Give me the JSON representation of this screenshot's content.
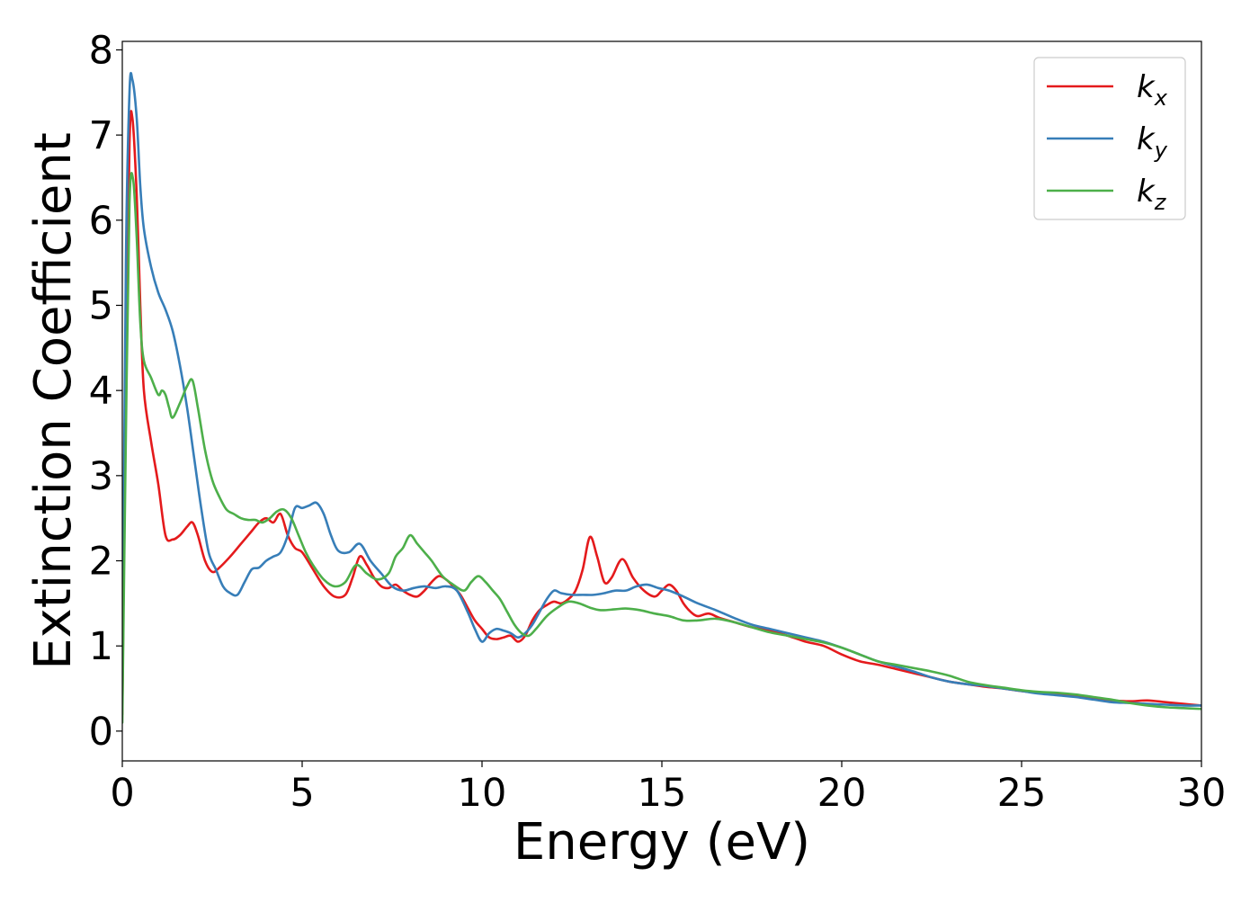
{
  "chart_data": {
    "type": "line",
    "title": "",
    "xlabel": "Energy (eV)",
    "ylabel": "Extinction Coefficient",
    "xlim": [
      0,
      30
    ],
    "ylim": [
      -0.35,
      8.1
    ],
    "xticks": [
      0,
      5,
      10,
      15,
      20,
      25,
      30
    ],
    "xtick_labels": [
      "0",
      "5",
      "10",
      "15",
      "20",
      "25",
      "30"
    ],
    "yticks": [
      0,
      1,
      2,
      3,
      4,
      5,
      6,
      7,
      8
    ],
    "ytick_labels": [
      "0",
      "1",
      "2",
      "3",
      "4",
      "5",
      "6",
      "7",
      "8"
    ],
    "grid": false,
    "legend_position": "top-right",
    "series": [
      {
        "name": "k_x",
        "legend_main": "k",
        "legend_sub": "x",
        "color": "#e41a1c",
        "x": [
          0,
          0.1,
          0.2,
          0.28,
          0.4,
          0.5,
          0.6,
          0.8,
          1.0,
          1.2,
          1.4,
          1.6,
          1.8,
          1.95,
          2.1,
          2.3,
          2.5,
          2.7,
          3.0,
          3.3,
          3.6,
          3.8,
          4.0,
          4.2,
          4.4,
          4.6,
          4.8,
          5.0,
          5.3,
          5.6,
          5.9,
          6.2,
          6.4,
          6.6,
          6.8,
          7.0,
          7.2,
          7.4,
          7.6,
          7.8,
          8.0,
          8.2,
          8.4,
          8.6,
          8.8,
          9.0,
          9.2,
          9.4,
          9.6,
          9.8,
          10.0,
          10.2,
          10.4,
          10.6,
          10.8,
          11.0,
          11.2,
          11.4,
          11.6,
          11.8,
          12.0,
          12.2,
          12.4,
          12.6,
          12.8,
          13.0,
          13.2,
          13.4,
          13.6,
          13.9,
          14.2,
          14.5,
          14.8,
          15.0,
          15.2,
          15.4,
          15.6,
          15.8,
          16.0,
          16.3,
          16.6,
          17.0,
          17.5,
          18.0,
          18.5,
          19.0,
          19.5,
          20.0,
          20.5,
          21.0,
          21.5,
          22.0,
          22.5,
          23.0,
          23.5,
          24.0,
          24.5,
          25.0,
          25.5,
          26.0,
          26.5,
          27.0,
          27.5,
          28.0,
          28.5,
          29.0,
          29.5,
          30.0
        ],
        "y": [
          0.2,
          4.2,
          6.9,
          7.2,
          6.3,
          5.0,
          4.0,
          3.4,
          2.9,
          2.3,
          2.25,
          2.3,
          2.4,
          2.45,
          2.3,
          2.0,
          1.87,
          1.92,
          2.05,
          2.2,
          2.35,
          2.45,
          2.5,
          2.45,
          2.55,
          2.3,
          2.15,
          2.1,
          1.9,
          1.7,
          1.58,
          1.6,
          1.8,
          2.05,
          1.95,
          1.8,
          1.7,
          1.68,
          1.72,
          1.65,
          1.6,
          1.58,
          1.65,
          1.75,
          1.82,
          1.78,
          1.7,
          1.6,
          1.45,
          1.3,
          1.2,
          1.1,
          1.08,
          1.1,
          1.12,
          1.05,
          1.12,
          1.3,
          1.42,
          1.48,
          1.52,
          1.5,
          1.55,
          1.65,
          1.9,
          2.28,
          2.05,
          1.75,
          1.8,
          2.02,
          1.8,
          1.65,
          1.58,
          1.65,
          1.72,
          1.65,
          1.5,
          1.4,
          1.35,
          1.38,
          1.33,
          1.28,
          1.22,
          1.18,
          1.12,
          1.05,
          1.0,
          0.9,
          0.82,
          0.78,
          0.73,
          0.68,
          0.63,
          0.58,
          0.55,
          0.52,
          0.5,
          0.47,
          0.45,
          0.43,
          0.41,
          0.38,
          0.36,
          0.35,
          0.36,
          0.34,
          0.32,
          0.3
        ]
      },
      {
        "name": "k_y",
        "legend_main": "k",
        "legend_sub": "y",
        "color": "#377eb8",
        "x": [
          0,
          0.1,
          0.2,
          0.28,
          0.4,
          0.5,
          0.6,
          0.8,
          1.0,
          1.2,
          1.4,
          1.6,
          1.8,
          2.0,
          2.2,
          2.4,
          2.6,
          2.8,
          3.0,
          3.2,
          3.4,
          3.6,
          3.8,
          4.0,
          4.2,
          4.4,
          4.6,
          4.8,
          5.0,
          5.2,
          5.4,
          5.6,
          5.8,
          6.0,
          6.3,
          6.6,
          6.9,
          7.2,
          7.5,
          7.8,
          8.1,
          8.4,
          8.7,
          9.0,
          9.3,
          9.6,
          9.8,
          10.0,
          10.2,
          10.4,
          10.6,
          10.8,
          11.0,
          11.2,
          11.4,
          11.6,
          11.8,
          12.0,
          12.2,
          12.5,
          12.8,
          13.1,
          13.4,
          13.7,
          14.0,
          14.3,
          14.6,
          14.9,
          15.2,
          15.6,
          16.0,
          16.5,
          17.0,
          17.5,
          18.0,
          18.5,
          19.0,
          19.5,
          20.0,
          20.5,
          21.0,
          21.5,
          22.0,
          22.5,
          23.0,
          23.5,
          24.0,
          24.5,
          25.0,
          25.5,
          26.0,
          26.5,
          27.0,
          27.5,
          28.0,
          28.5,
          29.0,
          29.5,
          30.0
        ],
        "y": [
          0.3,
          5.5,
          7.5,
          7.65,
          7.2,
          6.4,
          5.9,
          5.45,
          5.15,
          4.95,
          4.7,
          4.3,
          3.8,
          3.2,
          2.6,
          2.1,
          1.9,
          1.7,
          1.62,
          1.6,
          1.75,
          1.9,
          1.92,
          2.0,
          2.05,
          2.1,
          2.3,
          2.62,
          2.62,
          2.65,
          2.68,
          2.55,
          2.3,
          2.12,
          2.1,
          2.2,
          2.0,
          1.85,
          1.7,
          1.65,
          1.68,
          1.7,
          1.68,
          1.7,
          1.65,
          1.4,
          1.2,
          1.05,
          1.15,
          1.2,
          1.18,
          1.15,
          1.1,
          1.15,
          1.25,
          1.4,
          1.55,
          1.65,
          1.62,
          1.6,
          1.6,
          1.6,
          1.62,
          1.65,
          1.65,
          1.7,
          1.72,
          1.68,
          1.65,
          1.58,
          1.5,
          1.42,
          1.33,
          1.25,
          1.2,
          1.15,
          1.1,
          1.05,
          0.98,
          0.9,
          0.82,
          0.76,
          0.7,
          0.63,
          0.58,
          0.55,
          0.53,
          0.5,
          0.47,
          0.44,
          0.42,
          0.4,
          0.37,
          0.34,
          0.33,
          0.32,
          0.31,
          0.3,
          0.3
        ]
      },
      {
        "name": "k_z",
        "legend_main": "k",
        "legend_sub": "z",
        "color": "#4daf4a",
        "x": [
          0,
          0.1,
          0.2,
          0.3,
          0.4,
          0.5,
          0.6,
          0.8,
          1.0,
          1.1,
          1.2,
          1.3,
          1.4,
          1.6,
          1.8,
          1.95,
          2.1,
          2.3,
          2.5,
          2.7,
          2.9,
          3.1,
          3.3,
          3.5,
          3.7,
          3.9,
          4.1,
          4.3,
          4.5,
          4.7,
          4.9,
          5.1,
          5.3,
          5.6,
          5.9,
          6.2,
          6.5,
          6.8,
          7.1,
          7.4,
          7.6,
          7.8,
          8.0,
          8.2,
          8.4,
          8.6,
          8.9,
          9.2,
          9.5,
          9.7,
          9.9,
          10.1,
          10.3,
          10.5,
          10.7,
          10.9,
          11.1,
          11.3,
          11.5,
          11.8,
          12.1,
          12.4,
          12.7,
          13.0,
          13.3,
          13.7,
          14.0,
          14.4,
          14.8,
          15.2,
          15.6,
          16.0,
          16.5,
          17.0,
          17.5,
          18.0,
          18.5,
          19.0,
          19.5,
          20.0,
          20.5,
          21.0,
          21.5,
          22.0,
          22.5,
          23.0,
          23.5,
          24.0,
          24.5,
          25.0,
          25.5,
          26.0,
          26.5,
          27.0,
          27.5,
          28.0,
          28.5,
          29.0,
          29.5,
          30.0
        ],
        "y": [
          0.1,
          3.5,
          6.2,
          6.48,
          5.8,
          4.8,
          4.35,
          4.15,
          3.95,
          4.0,
          3.95,
          3.8,
          3.68,
          3.85,
          4.05,
          4.12,
          3.8,
          3.3,
          2.95,
          2.75,
          2.6,
          2.55,
          2.5,
          2.48,
          2.48,
          2.45,
          2.5,
          2.58,
          2.6,
          2.5,
          2.3,
          2.1,
          1.95,
          1.78,
          1.7,
          1.75,
          1.95,
          1.85,
          1.78,
          1.85,
          2.05,
          2.15,
          2.3,
          2.2,
          2.1,
          2.0,
          1.82,
          1.72,
          1.65,
          1.75,
          1.82,
          1.75,
          1.65,
          1.55,
          1.4,
          1.25,
          1.15,
          1.12,
          1.2,
          1.35,
          1.45,
          1.52,
          1.5,
          1.45,
          1.42,
          1.43,
          1.44,
          1.42,
          1.38,
          1.35,
          1.3,
          1.3,
          1.32,
          1.28,
          1.22,
          1.16,
          1.12,
          1.08,
          1.04,
          0.98,
          0.9,
          0.82,
          0.78,
          0.74,
          0.7,
          0.65,
          0.58,
          0.54,
          0.51,
          0.48,
          0.46,
          0.45,
          0.43,
          0.4,
          0.37,
          0.33,
          0.3,
          0.28,
          0.27,
          0.26
        ]
      }
    ]
  }
}
